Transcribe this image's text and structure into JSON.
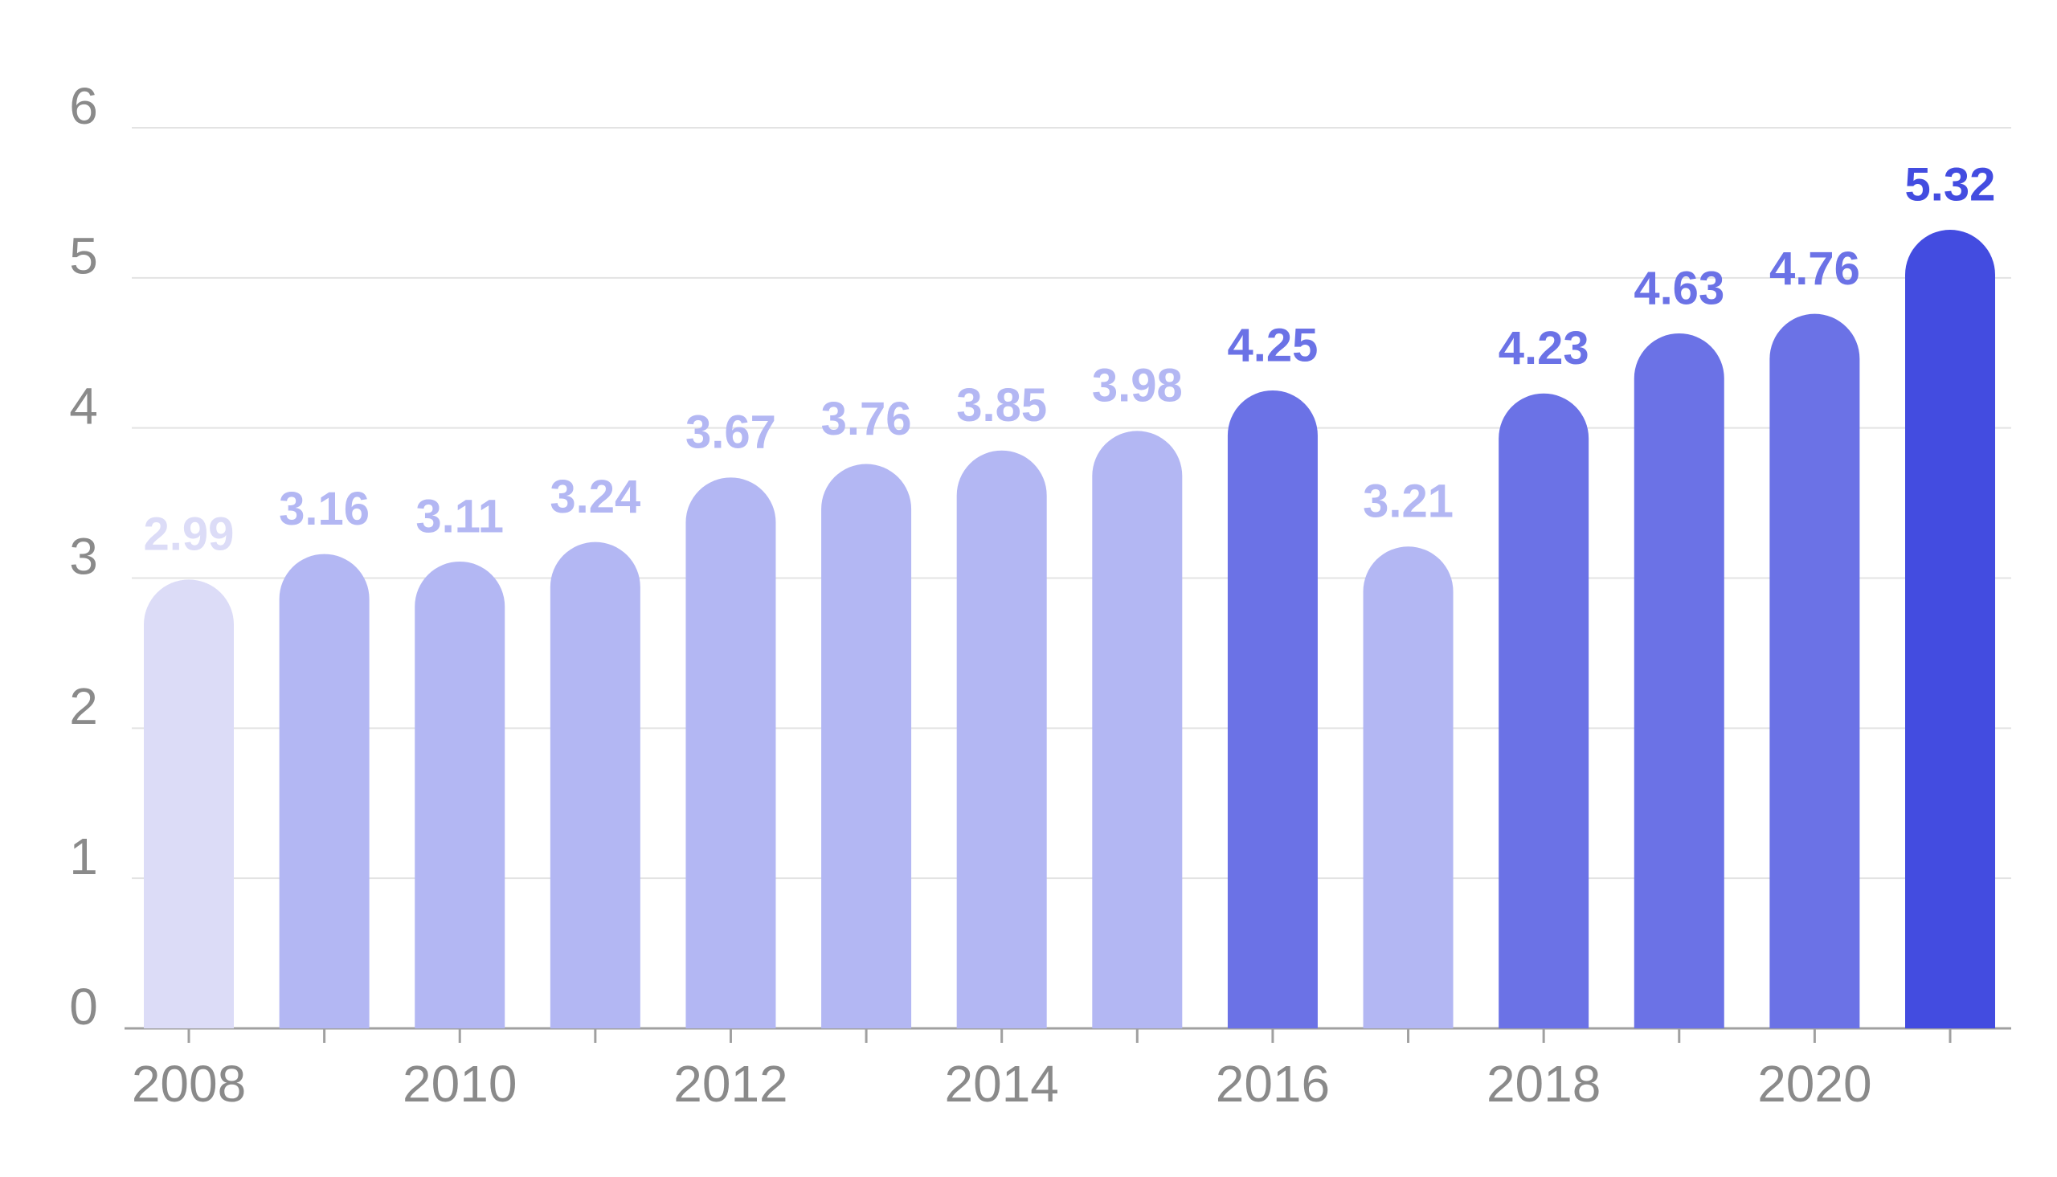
{
  "chart_data": {
    "type": "bar",
    "categories": [
      "2008",
      null,
      "2010",
      null,
      "2012",
      null,
      "2014",
      null,
      "2016",
      null,
      "2018",
      null,
      "2020",
      null
    ],
    "values": [
      2.99,
      3.16,
      3.11,
      3.24,
      3.67,
      3.76,
      3.85,
      3.98,
      4.25,
      3.21,
      4.23,
      4.63,
      4.76,
      5.32
    ],
    "colors": [
      "#dcdcf7",
      "#b3b7f3",
      "#b3b7f3",
      "#b3b7f3",
      "#b3b7f3",
      "#b3b7f3",
      "#b3b7f3",
      "#b3b7f3",
      "#6b72e6",
      "#b3b7f3",
      "#6b72e6",
      "#6b72e6",
      "#6b72e6",
      "#434ce0"
    ],
    "ylim": [
      0,
      6
    ],
    "yticks": [
      0,
      1,
      2,
      3,
      4,
      5,
      6
    ],
    "grid": true
  }
}
